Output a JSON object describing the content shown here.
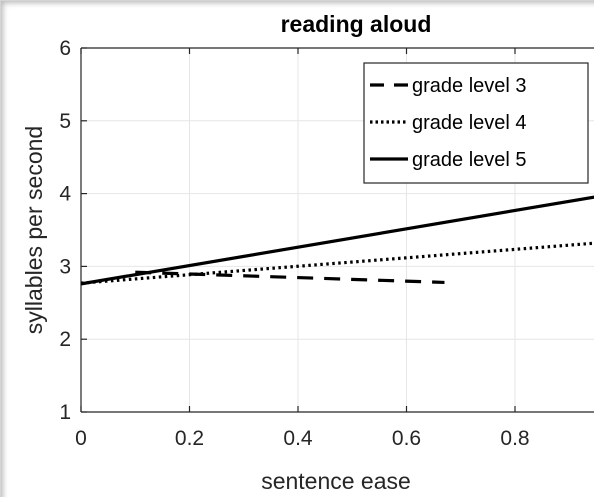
{
  "chart_data": {
    "type": "line",
    "title": "reading aloud",
    "xlabel": "sentence ease",
    "ylabel": "syllables per second",
    "xlim": [
      0,
      1
    ],
    "ylim": [
      1,
      6
    ],
    "x_ticks": [
      "0",
      "0.2",
      "0.4",
      "0.6",
      "0.8"
    ],
    "y_ticks": [
      "1",
      "2",
      "3",
      "4",
      "5",
      "6"
    ],
    "grid": true,
    "legend_position": "top-right",
    "series": [
      {
        "name": "grade level 3",
        "style": "dashed",
        "color": "#000000",
        "x": [
          0.1,
          0.67
        ],
        "y": [
          2.92,
          2.78
        ]
      },
      {
        "name": "grade level 4",
        "style": "dotted",
        "color": "#000000",
        "x": [
          0.0,
          1.0
        ],
        "y": [
          2.77,
          3.35
        ]
      },
      {
        "name": "grade level 5",
        "style": "solid",
        "color": "#000000",
        "x": [
          0.0,
          1.0
        ],
        "y": [
          2.76,
          4.02
        ]
      }
    ]
  }
}
